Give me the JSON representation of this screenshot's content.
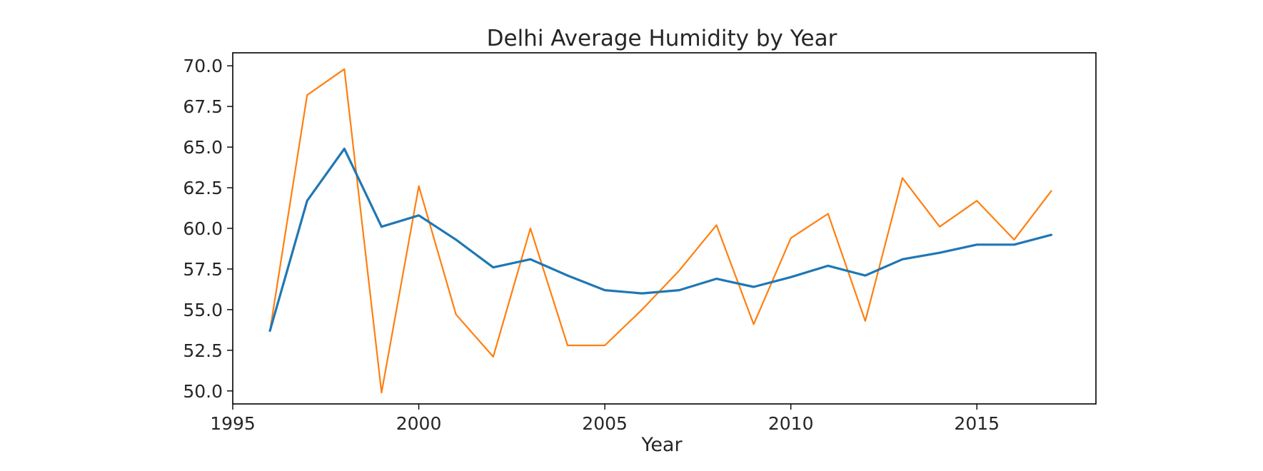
{
  "chart_data": {
    "type": "line",
    "title": "Delhi Average Humidity by Year",
    "xlabel": "Year",
    "ylabel": "",
    "xlim": [
      1995,
      2018.2
    ],
    "ylim": [
      49.2,
      70.8
    ],
    "x_ticks": [
      1995,
      2000,
      2005,
      2010,
      2015
    ],
    "y_ticks": [
      50.0,
      52.5,
      55.0,
      57.5,
      60.0,
      62.5,
      65.0,
      67.5,
      70.0
    ],
    "x_tick_labels": [
      "1995",
      "2000",
      "2005",
      "2010",
      "2015"
    ],
    "y_tick_labels": [
      "50.0",
      "52.5",
      "55.0",
      "57.5",
      "60.0",
      "62.5",
      "65.0",
      "67.5",
      "70.0"
    ],
    "grid": false,
    "x": [
      1996,
      1997,
      1998,
      1999,
      2000,
      2001,
      2002,
      2003,
      2004,
      2005,
      2006,
      2007,
      2008,
      2009,
      2010,
      2011,
      2012,
      2013,
      2014,
      2015,
      2016,
      2017
    ],
    "series": [
      {
        "color": "#1f77b4",
        "values": [
          53.7,
          61.7,
          64.9,
          60.1,
          60.8,
          59.3,
          57.6,
          58.1,
          57.1,
          56.2,
          56.0,
          56.2,
          56.9,
          56.4,
          57.0,
          57.7,
          57.1,
          58.1,
          58.5,
          59.0,
          59.0,
          59.6
        ]
      },
      {
        "color": "#ff7f0e",
        "values": [
          53.7,
          68.2,
          69.8,
          49.9,
          62.6,
          54.7,
          52.1,
          60.0,
          52.8,
          52.8,
          55.0,
          57.4,
          60.2,
          54.1,
          59.4,
          60.9,
          54.3,
          63.1,
          60.1,
          61.7,
          59.3,
          62.3
        ]
      }
    ]
  }
}
